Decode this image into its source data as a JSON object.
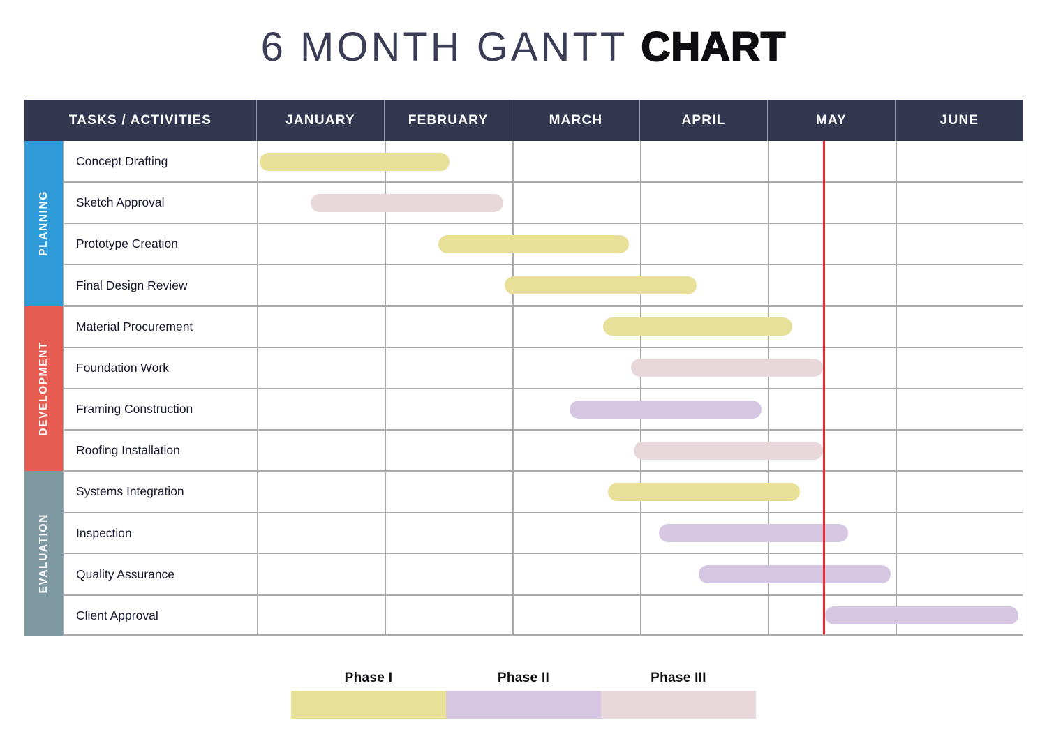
{
  "title": {
    "light": "6 MONTH GANTT ",
    "bold": "CHART"
  },
  "table": {
    "tasks_header": "TASKS / ACTIVITIES",
    "months": [
      "JANUARY",
      "FEBRUARY",
      "MARCH",
      "APRIL",
      "MAY",
      "JUNE"
    ]
  },
  "sections": [
    {
      "label": "PLANNING",
      "color": "#2e9ad7",
      "rows": 4
    },
    {
      "label": "DEVELOPMENT",
      "color": "#e65b52",
      "rows": 4
    },
    {
      "label": "EVALUATION",
      "color": "#7e99a2",
      "rows": 4
    }
  ],
  "chart_data": {
    "type": "gantt",
    "time_axis": {
      "unit": "month",
      "categories": [
        "JANUARY",
        "FEBRUARY",
        "MARCH",
        "APRIL",
        "MAY",
        "JUNE"
      ],
      "range": [
        0,
        6
      ]
    },
    "today_marker_month": 4.44,
    "phase_colors": {
      "Phase I": "#e8df99",
      "Phase II": "#d5c7e1",
      "Phase III": "#e8d8dc"
    },
    "tasks": [
      {
        "name": "Concept Drafting",
        "section": "PLANNING",
        "phase": "Phase I",
        "start": 0.02,
        "end": 1.51
      },
      {
        "name": "Sketch Approval",
        "section": "PLANNING",
        "phase": "Phase III",
        "start": 0.42,
        "end": 1.93
      },
      {
        "name": "Prototype Creation",
        "section": "PLANNING",
        "phase": "Phase I",
        "start": 1.42,
        "end": 2.91
      },
      {
        "name": "Final Design Review",
        "section": "PLANNING",
        "phase": "Phase I",
        "start": 1.94,
        "end": 3.44
      },
      {
        "name": "Material Procurement",
        "section": "DEVELOPMENT",
        "phase": "Phase I",
        "start": 2.71,
        "end": 4.19
      },
      {
        "name": "Foundation Work",
        "section": "DEVELOPMENT",
        "phase": "Phase III",
        "start": 2.93,
        "end": 4.43
      },
      {
        "name": "Framing Construction",
        "section": "DEVELOPMENT",
        "phase": "Phase II",
        "start": 2.45,
        "end": 3.95
      },
      {
        "name": "Roofing Installation",
        "section": "DEVELOPMENT",
        "phase": "Phase III",
        "start": 2.95,
        "end": 4.43
      },
      {
        "name": "Systems Integration",
        "section": "EVALUATION",
        "phase": "Phase I",
        "start": 2.75,
        "end": 4.25
      },
      {
        "name": "Inspection",
        "section": "EVALUATION",
        "phase": "Phase II",
        "start": 3.15,
        "end": 4.63
      },
      {
        "name": "Quality Assurance",
        "section": "EVALUATION",
        "phase": "Phase II",
        "start": 3.46,
        "end": 4.96
      },
      {
        "name": "Client Approval",
        "section": "EVALUATION",
        "phase": "Phase II",
        "start": 4.45,
        "end": 5.96
      }
    ]
  },
  "legend": {
    "items": [
      {
        "label": "Phase I",
        "color": "#e8df99"
      },
      {
        "label": "Phase II",
        "color": "#d5c7e1"
      },
      {
        "label": "Phase III",
        "color": "#e8d8dc"
      }
    ]
  },
  "colors": {
    "header_bg": "#343750",
    "header_text": "#ffffff",
    "grid_line": "#a9a9a9",
    "section_line": "#ababab",
    "today_line": "#f5262b",
    "task_text": "#18182e"
  }
}
